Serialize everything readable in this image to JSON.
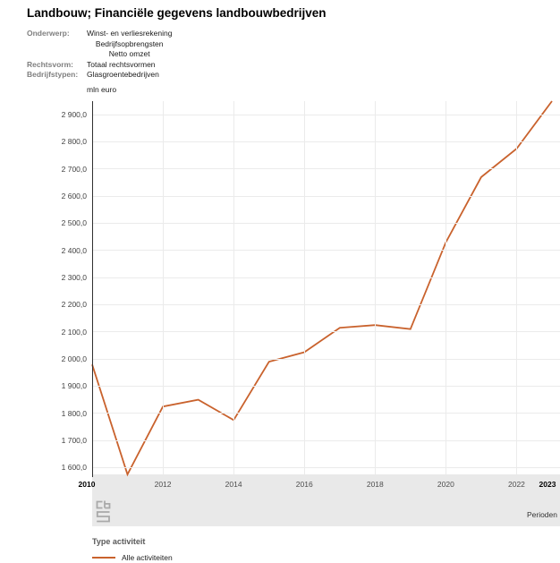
{
  "title": "Landbouw; Financiële gegevens landbouwbedrijven",
  "meta": {
    "rows": [
      {
        "label": "Onderwerp:",
        "values": [
          "Winst- en verliesrekening",
          "Bedrijfsopbrengsten",
          "Netto omzet"
        ]
      },
      {
        "label": "Rechtsvorm:",
        "values": [
          "Totaal rechtsvormen"
        ]
      },
      {
        "label": "Bedrijfstypen:",
        "values": [
          "Glasgroentebedrijven"
        ]
      }
    ]
  },
  "chart_data": {
    "type": "line",
    "title": "",
    "xlabel": "Perioden",
    "ylabel": "mln euro",
    "x": [
      2010,
      2011,
      2012,
      2013,
      2014,
      2015,
      2016,
      2017,
      2018,
      2019,
      2020,
      2021,
      2022,
      2023
    ],
    "series": [
      {
        "name": "Alle activiteiten",
        "color": "#c9622d",
        "values": [
          1980,
          1575,
          1825,
          1850,
          1775,
          1990,
          2025,
          2115,
          2125,
          2110,
          2430,
          2670,
          2775,
          2950
        ]
      }
    ],
    "ylim": [
      1575,
      2950
    ],
    "grid": true,
    "legend_position": "bottom",
    "y_ticks": [
      {
        "value": 1600,
        "label": "1 600,0"
      },
      {
        "value": 1700,
        "label": "1 700,0"
      },
      {
        "value": 1800,
        "label": "1 800,0"
      },
      {
        "value": 1900,
        "label": "1 900,0"
      },
      {
        "value": 2000,
        "label": "2 000,0"
      },
      {
        "value": 2100,
        "label": "2 100,0"
      },
      {
        "value": 2200,
        "label": "2 200,0"
      },
      {
        "value": 2300,
        "label": "2 300,0"
      },
      {
        "value": 2400,
        "label": "2 400,0"
      },
      {
        "value": 2500,
        "label": "2 500,0"
      },
      {
        "value": 2600,
        "label": "2 600,0"
      },
      {
        "value": 2700,
        "label": "2 700,0"
      },
      {
        "value": 2800,
        "label": "2 800,0"
      },
      {
        "value": 2900,
        "label": "2 900,0"
      }
    ],
    "x_ticks": [
      {
        "year": 2010,
        "label": "2010",
        "bold": true,
        "grid": false
      },
      {
        "year": 2012,
        "label": "2012",
        "bold": false,
        "grid": true
      },
      {
        "year": 2014,
        "label": "2014",
        "bold": false,
        "grid": true
      },
      {
        "year": 2016,
        "label": "2016",
        "bold": false,
        "grid": true
      },
      {
        "year": 2018,
        "label": "2018",
        "bold": false,
        "grid": true
      },
      {
        "year": 2020,
        "label": "2020",
        "bold": false,
        "grid": true
      },
      {
        "year": 2022,
        "label": "2022",
        "bold": false,
        "grid": true
      },
      {
        "year": 2023,
        "label": "2023",
        "bold": true,
        "grid": false
      }
    ]
  },
  "slider": {
    "label": "Perioden",
    "logo": "cbs-logo"
  },
  "legend": {
    "title": "Type activiteit",
    "items": [
      {
        "label": "Alle activiteiten",
        "color": "#c9622d"
      }
    ]
  },
  "colors": {
    "line": "#c9622d",
    "band": "#e9e9e9",
    "gridline": "#ebebeb",
    "axis": "#2f2f2f",
    "logo": "#a9a9a9"
  }
}
